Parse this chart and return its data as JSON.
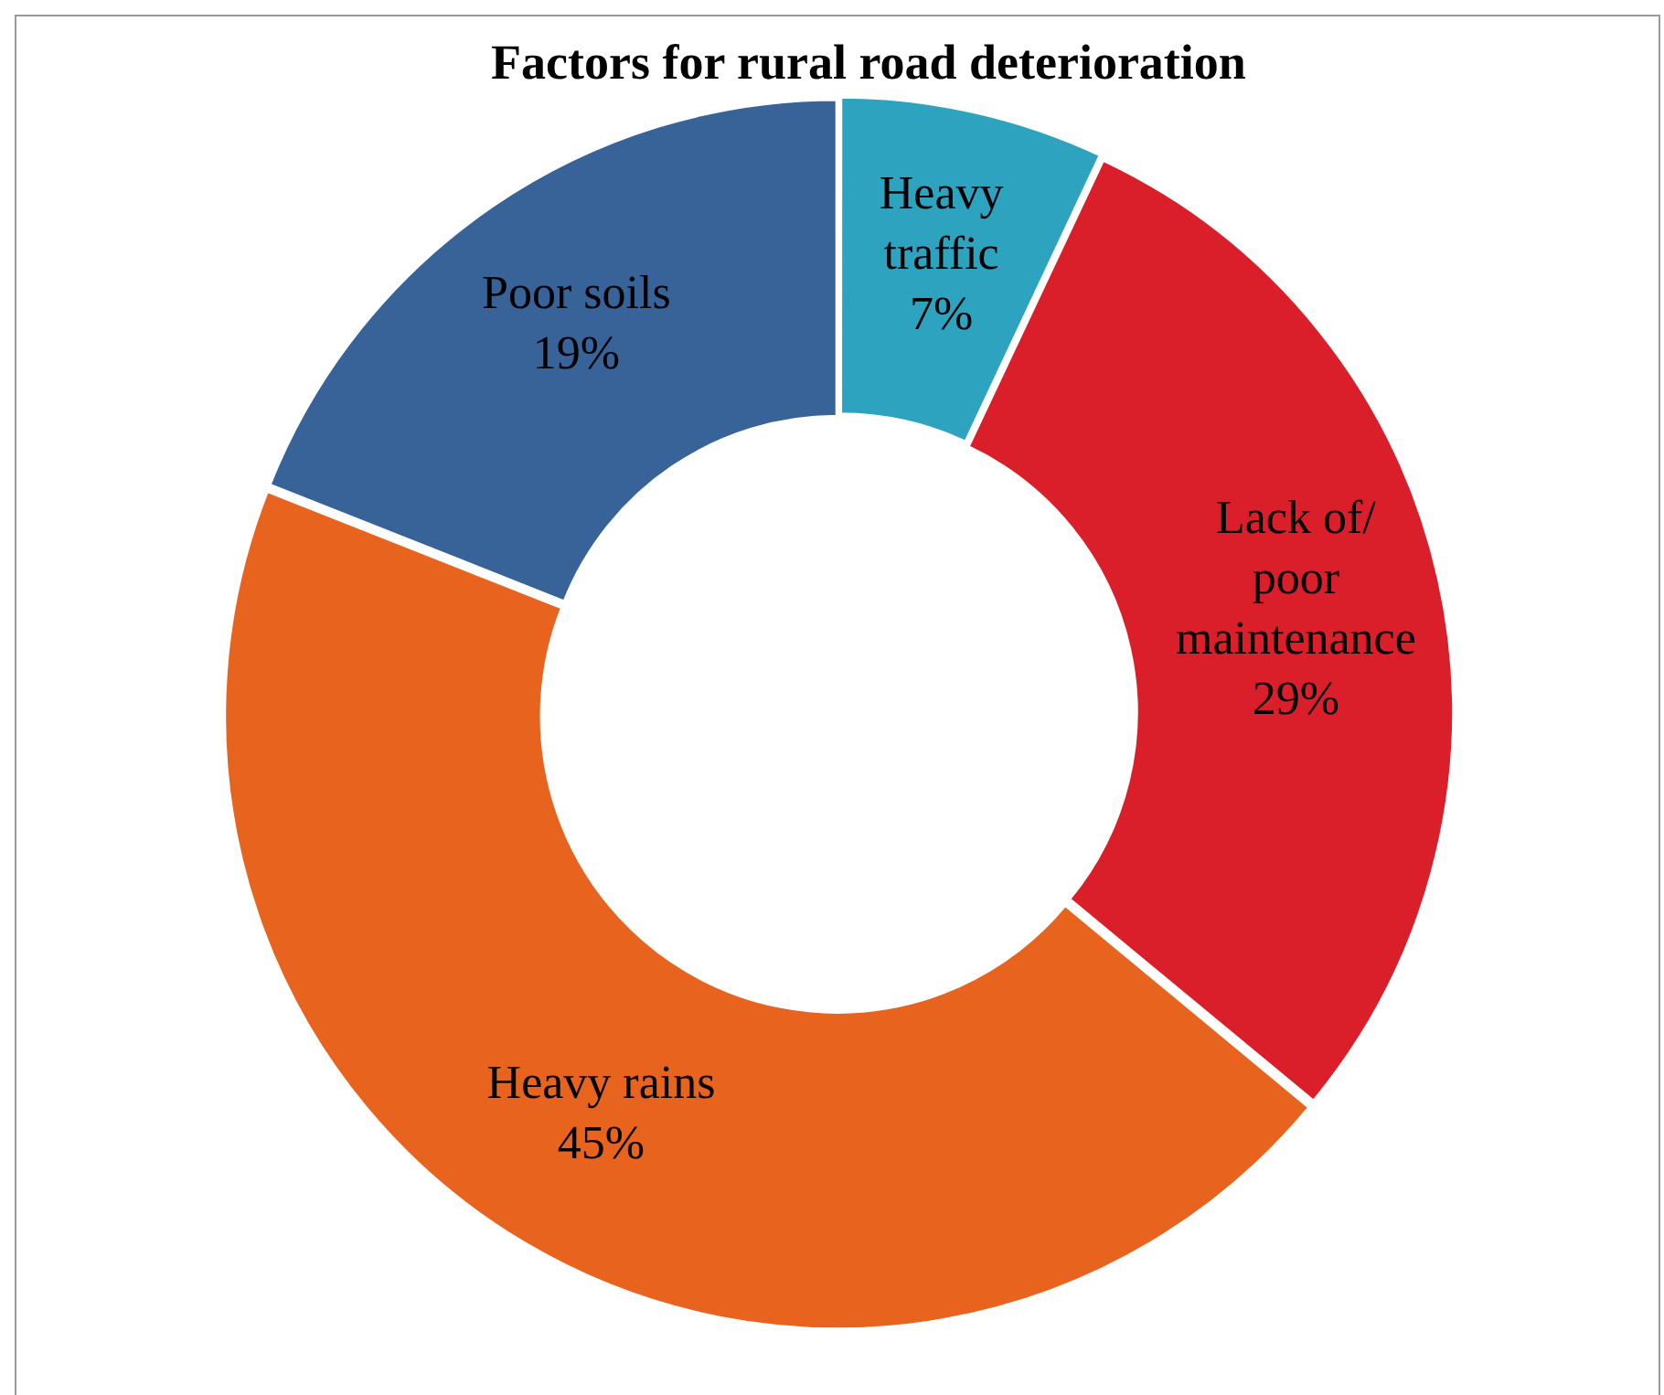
{
  "chart_data": {
    "type": "donut",
    "title": "Factors for rural road deterioration",
    "categories": [
      "Heavy traffic",
      "Lack of/ poor maintenance",
      "Heavy rains",
      "Poor soils"
    ],
    "values": [
      7,
      29,
      45,
      19
    ],
    "colors": [
      "#2ea3c0",
      "#da1f2a",
      "#e8631e",
      "#386399"
    ],
    "value_labels": [
      "7%",
      "29%",
      "45%",
      "19%"
    ],
    "legend": false
  }
}
